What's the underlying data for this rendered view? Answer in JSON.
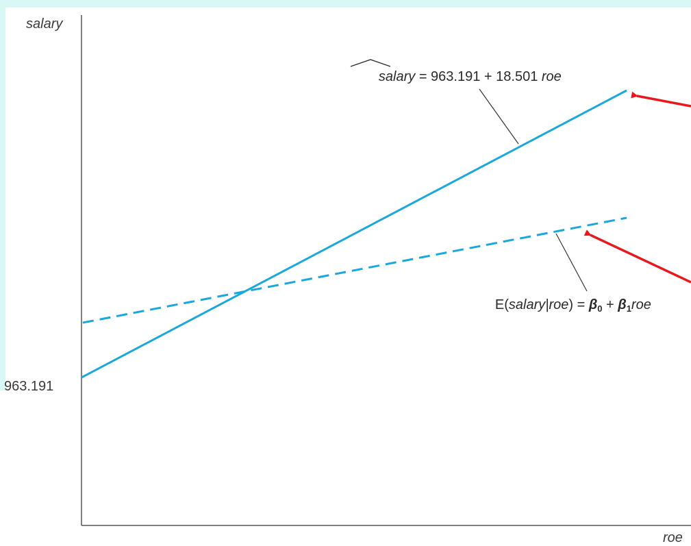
{
  "chart_data": {
    "type": "line",
    "xlabel": "roe",
    "ylabel": "salary",
    "y_tick_labels": [
      "963.191"
    ],
    "series": [
      {
        "name": "salary_hat",
        "style": "solid",
        "intercept": 963.191,
        "slope": 18.501,
        "label_parts": {
          "lhs": "salary",
          "eq": " = 963.191 + 18.501 ",
          "var": "roe"
        }
      },
      {
        "name": "E(salary|roe)",
        "style": "dashed",
        "label_parts": {
          "e_open": "E(",
          "cond": "salary|roe",
          "close_eq": ") = ",
          "beta0": "β",
          "beta0_sub": "0",
          "plus": " + ",
          "beta1": "β",
          "beta1_sub": "1",
          "var": "roe"
        }
      }
    ],
    "annotations": [
      {
        "type": "arrow",
        "color": "#e8191e",
        "target": "salary_hat line end"
      },
      {
        "type": "arrow",
        "color": "#e8191e",
        "target": "E(salary|roe) line"
      }
    ],
    "colors": {
      "line": "#1aa8dc",
      "axis": "#555555",
      "arrow": "#e8191e"
    }
  }
}
